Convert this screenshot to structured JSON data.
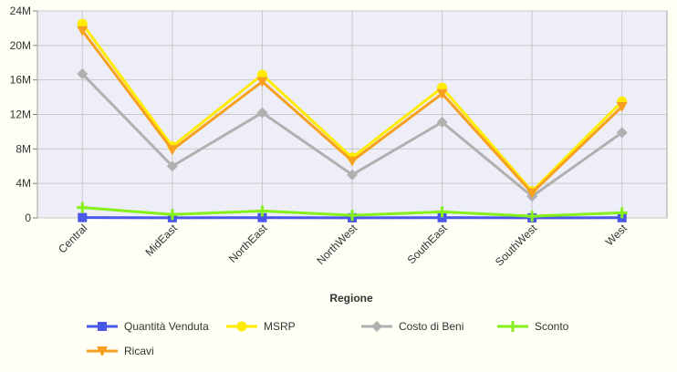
{
  "chart_data": {
    "type": "line",
    "xlabel": "Regione",
    "ylabel": "",
    "categories": [
      "Central",
      "MidEast",
      "NorthEast",
      "NorthWest",
      "SouthEast",
      "SouthWest",
      "West"
    ],
    "ylim": [
      0,
      24000000
    ],
    "yticks": [
      {
        "value": 0,
        "label": "0"
      },
      {
        "value": 4000000,
        "label": "4M"
      },
      {
        "value": 8000000,
        "label": "8M"
      },
      {
        "value": 12000000,
        "label": "12M"
      },
      {
        "value": 16000000,
        "label": "16M"
      },
      {
        "value": 20000000,
        "label": "20M"
      },
      {
        "value": 24000000,
        "label": "24M"
      }
    ],
    "grid": true,
    "legend_position": "bottom",
    "series": [
      {
        "name": "Quantità Venduta",
        "color": "#4a57e8",
        "marker": "square",
        "values": [
          40000,
          15000,
          28000,
          10000,
          25000,
          8000,
          22000
        ]
      },
      {
        "name": "MSRP",
        "color": "#ffec00",
        "marker": "circle",
        "values": [
          22500000,
          8300000,
          16600000,
          7000000,
          15100000,
          3100000,
          13500000
        ]
      },
      {
        "name": "Costo di Beni",
        "color": "#b0b0b0",
        "marker": "diamond",
        "values": [
          16700000,
          6000000,
          12200000,
          5000000,
          11100000,
          2500000,
          9900000
        ]
      },
      {
        "name": "Sconto",
        "color": "#86f01a",
        "marker": "plus",
        "values": [
          1200000,
          400000,
          800000,
          300000,
          700000,
          200000,
          600000
        ]
      },
      {
        "name": "Ricavi",
        "color": "#f7a020",
        "marker": "triangle-down",
        "values": [
          21700000,
          7900000,
          15800000,
          6600000,
          14400000,
          2900000,
          12900000
        ]
      }
    ]
  }
}
